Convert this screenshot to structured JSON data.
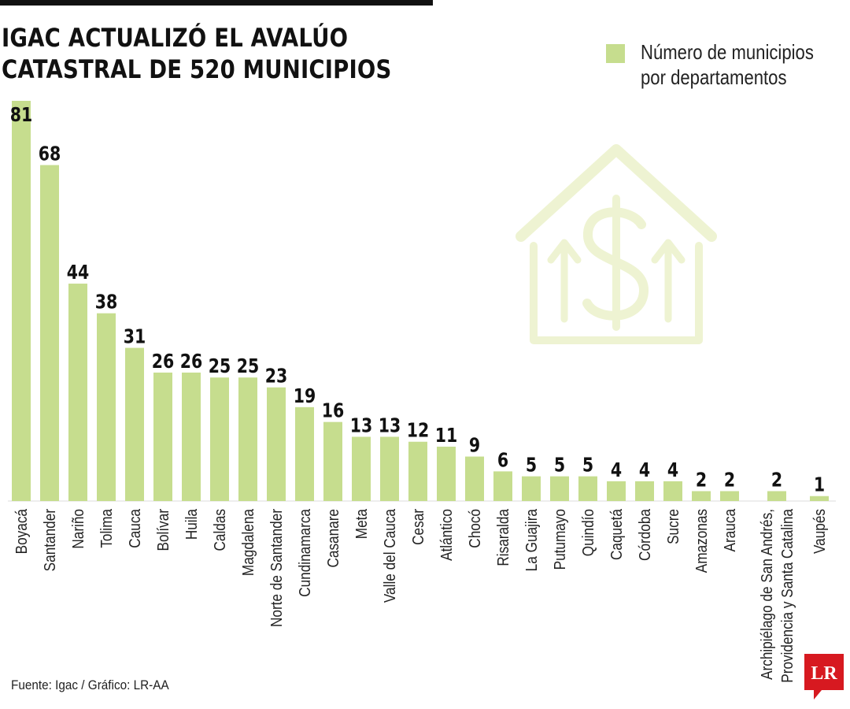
{
  "header": {
    "title_line1": "IGAC ACTUALIZÓ EL AVALÚO",
    "title_line2": "CATASTRAL DE 520 MUNICIPIOS"
  },
  "footer": {
    "source": "Fuente: Igac / Gráfico: LR-AA",
    "logo_text": "LR"
  },
  "colors": {
    "bar": "#c6dd8e",
    "icon": "#eef3d2",
    "logo": "#d71920"
  },
  "icon_name": "house-dollar-growth-icon",
  "chart_data": {
    "type": "bar",
    "title": "IGAC ACTUALIZÓ EL AVALÚO CATASTRAL DE 520 MUNICIPIOS",
    "series": [
      {
        "name": "Número de municipios por departamentos",
        "values": [
          81,
          68,
          44,
          38,
          31,
          26,
          26,
          25,
          25,
          23,
          19,
          16,
          13,
          13,
          12,
          11,
          9,
          6,
          5,
          5,
          5,
          4,
          4,
          4,
          2,
          2,
          2,
          1
        ]
      }
    ],
    "categories": [
      "Boyacá",
      "Santander",
      "Nariño",
      "Tolima",
      "Cauca",
      "Bolívar",
      "Huila",
      "Caldas",
      "Magdalena",
      "Norte de Santander",
      "Cundinamarca",
      "Casanare",
      "Meta",
      "Valle del Cauca",
      "Cesar",
      "Atlántico",
      "Chocó",
      "Risaralda",
      "La Guajira",
      "Putumayo",
      "Quindío",
      "Caquetá",
      "Córdoba",
      "Sucre",
      "Amazonas",
      "Arauca",
      "Archipiélago de San Andrés,\nProvidencia y Santa Catalina",
      "Vaupés"
    ],
    "ylim": [
      0,
      81
    ],
    "grid": false,
    "legend_position": "top-right",
    "data_labels": true
  }
}
